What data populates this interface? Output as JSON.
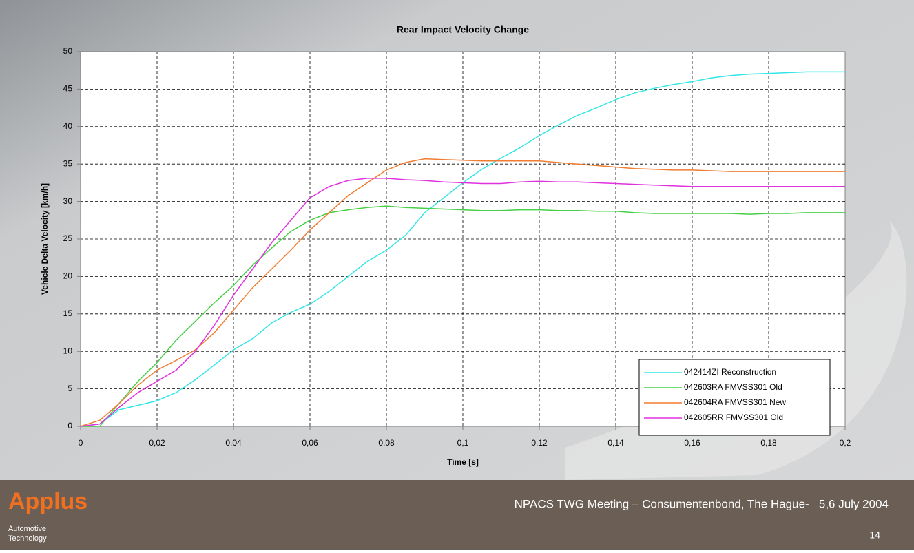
{
  "chart_data": {
    "type": "line",
    "title": "Rear Impact Velocity Change",
    "x_label": "Time [s]",
    "y_label": "Vehicle Delta Velocity [km/h]",
    "x": [
      0,
      0.005,
      0.01,
      0.015,
      0.02,
      0.025,
      0.03,
      0.035,
      0.04,
      0.045,
      0.05,
      0.055,
      0.06,
      0.065,
      0.07,
      0.075,
      0.08,
      0.085,
      0.09,
      0.095,
      0.1,
      0.105,
      0.11,
      0.115,
      0.12,
      0.125,
      0.13,
      0.135,
      0.14,
      0.145,
      0.15,
      0.155,
      0.16,
      0.165,
      0.17,
      0.175,
      0.18,
      0.185,
      0.19,
      0.195,
      0.2
    ],
    "series": [
      {
        "name": "042414ZI Reconstruction",
        "color": "#33e6e6",
        "values": [
          0,
          0.3,
          2.2,
          2.8,
          3.4,
          4.5,
          6.2,
          8.2,
          10.2,
          11.7,
          13.8,
          15.2,
          16.3,
          18.0,
          20.0,
          22.0,
          23.5,
          25.5,
          28.5,
          30.5,
          32.5,
          34.3,
          35.8,
          37.2,
          38.8,
          40.2,
          41.5,
          42.5,
          43.6,
          44.5,
          45.1,
          45.6,
          46.0,
          46.5,
          46.8,
          47.0,
          47.1,
          47.2,
          47.3,
          47.3,
          47.3
        ]
      },
      {
        "name": "042603RA FMVSS301 Old",
        "color": "#44d044",
        "values": [
          0,
          0,
          3.0,
          6.0,
          8.5,
          11.5,
          14.0,
          16.5,
          18.8,
          21.5,
          23.8,
          26.0,
          27.5,
          28.5,
          28.9,
          29.2,
          29.4,
          29.2,
          29.1,
          29.0,
          28.9,
          28.8,
          28.8,
          28.9,
          28.9,
          28.8,
          28.8,
          28.7,
          28.7,
          28.5,
          28.4,
          28.4,
          28.4,
          28.4,
          28.4,
          28.3,
          28.4,
          28.4,
          28.5,
          28.5,
          28.5
        ]
      },
      {
        "name": "042604RA FMVSS301 New",
        "color": "#f07c30",
        "values": [
          0,
          0.8,
          3.0,
          5.5,
          7.5,
          8.8,
          10.2,
          12.5,
          15.5,
          18.5,
          21.0,
          23.5,
          26.2,
          28.5,
          30.8,
          32.5,
          34.2,
          35.2,
          35.7,
          35.6,
          35.5,
          35.4,
          35.4,
          35.4,
          35.4,
          35.2,
          35.0,
          34.8,
          34.6,
          34.4,
          34.3,
          34.2,
          34.2,
          34.1,
          34.0,
          34.0,
          34.0,
          34.0,
          34.0,
          34.0,
          34.0
        ]
      },
      {
        "name": "042605RR FMVSS301 Old",
        "color": "#e030e0",
        "values": [
          0,
          0.3,
          2.5,
          4.5,
          6.0,
          7.5,
          10.0,
          13.5,
          17.5,
          21.0,
          24.5,
          27.5,
          30.5,
          32.0,
          32.8,
          33.1,
          33.1,
          32.9,
          32.8,
          32.6,
          32.5,
          32.4,
          32.4,
          32.6,
          32.7,
          32.6,
          32.6,
          32.5,
          32.4,
          32.3,
          32.2,
          32.1,
          32.0,
          32.0,
          32.0,
          32.0,
          32.0,
          32.0,
          32.0,
          32.0,
          32.0
        ]
      }
    ],
    "xlim": [
      0,
      0.2
    ],
    "xticks": [
      0,
      {
        "value": 0.02,
        "label": "0,02"
      },
      {
        "value": 0.04,
        "label": "0,04"
      },
      {
        "value": 0.06,
        "label": "0,06"
      },
      {
        "value": 0.08,
        "label": "0,08"
      },
      {
        "value": 0.1,
        "label": "0,1"
      },
      {
        "value": 0.12,
        "label": "0,12"
      },
      {
        "value": 0.14,
        "label": "0,14"
      },
      {
        "value": 0.16,
        "label": "0,16"
      },
      {
        "value": 0.18,
        "label": "0,18"
      },
      {
        "value": 0.2,
        "label": "0,2"
      }
    ],
    "ylim": [
      0,
      50
    ],
    "yticks": [
      0,
      5,
      10,
      15,
      20,
      25,
      30,
      35,
      40,
      45,
      50
    ],
    "grid": true,
    "legend": "lower right"
  },
  "logo": {
    "name": "Applus",
    "line1": "Automotive",
    "line2": "Technology"
  },
  "footer": {
    "text": "NPACS TWG Meeting – Consumentenbond, The Hague-   5,6 July 2004",
    "page": "14"
  }
}
